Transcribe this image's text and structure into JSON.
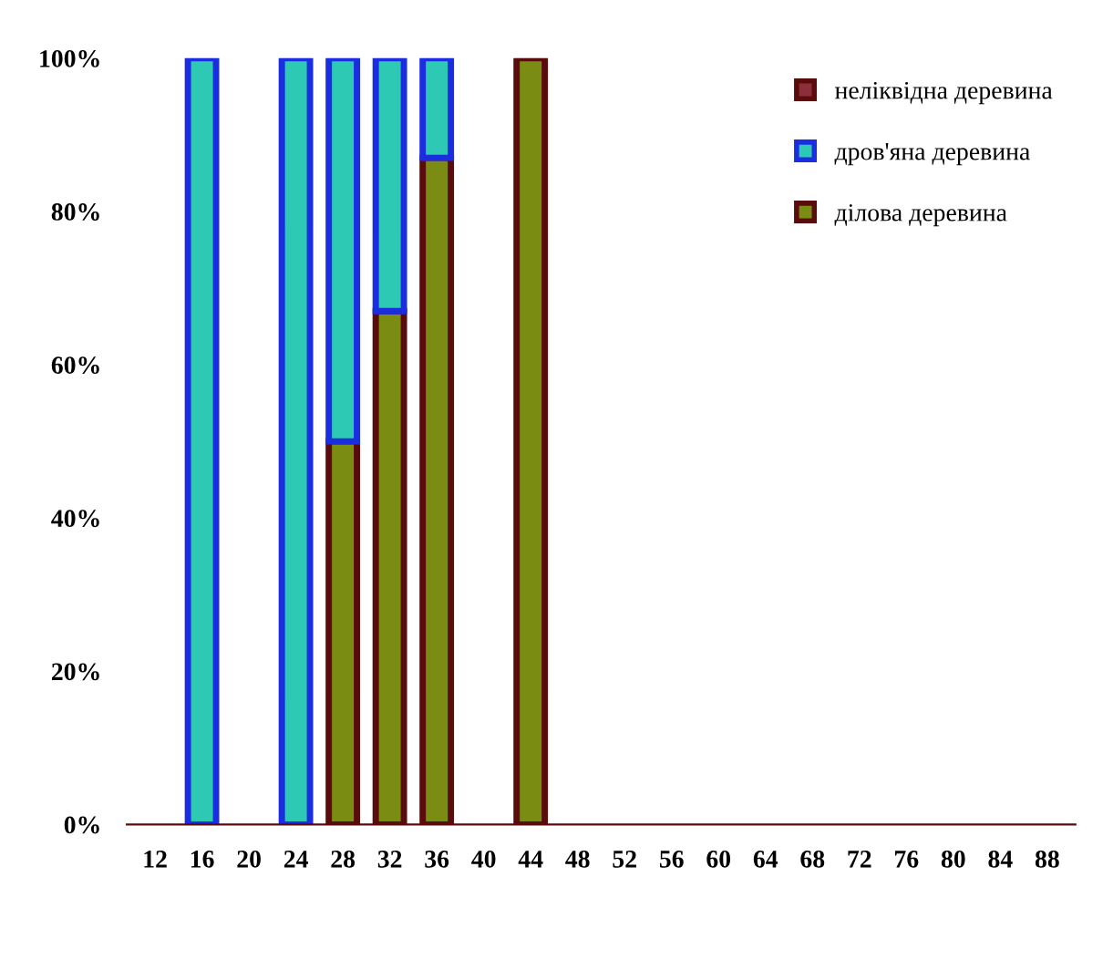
{
  "chart_data": {
    "type": "bar",
    "stacked": true,
    "categories": [
      "12",
      "16",
      "20",
      "24",
      "28",
      "32",
      "36",
      "40",
      "44",
      "48",
      "52",
      "56",
      "60",
      "64",
      "68",
      "72",
      "76",
      "80",
      "84",
      "88"
    ],
    "series": [
      {
        "name": "ділова деревина",
        "color": "#7b8c12",
        "values": [
          null,
          null,
          null,
          null,
          50,
          67,
          87,
          null,
          100,
          null,
          null,
          null,
          null,
          null,
          null,
          null,
          null,
          null,
          null,
          null
        ]
      },
      {
        "name": "дров'яна деревина",
        "color": "#2ec9b4",
        "values": [
          null,
          100,
          null,
          100,
          50,
          33,
          13,
          null,
          null,
          null,
          null,
          null,
          null,
          null,
          null,
          null,
          null,
          null,
          null,
          null
        ]
      },
      {
        "name": "неліквідна деревина",
        "color": "#8b2f3a",
        "values": [
          null,
          null,
          null,
          null,
          null,
          null,
          null,
          null,
          null,
          null,
          null,
          null,
          null,
          null,
          null,
          null,
          null,
          null,
          null,
          null
        ]
      }
    ],
    "ylim": [
      0,
      100
    ],
    "yticks": [
      {
        "value": 0,
        "label": "0%"
      },
      {
        "value": 20,
        "label": "20%"
      },
      {
        "value": 40,
        "label": "40%"
      },
      {
        "value": 60,
        "label": "60%"
      },
      {
        "value": 80,
        "label": "80%"
      },
      {
        "value": 100,
        "label": "100%"
      }
    ],
    "grid": false,
    "legend": "top right"
  }
}
